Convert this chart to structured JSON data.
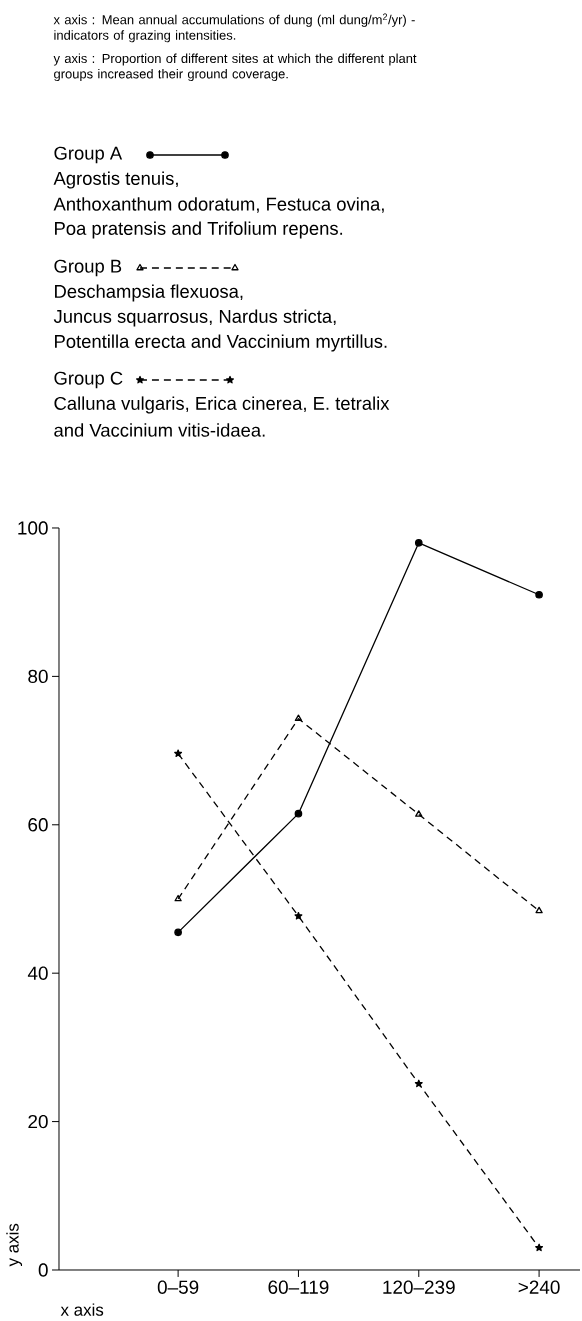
{
  "chart_data": {
    "type": "line",
    "xlabel": "x axis",
    "ylabel": "y axis",
    "annotations": [
      "x axis : Mean annual accumulations of dung (ml dung/m$^{2}$/yr) - indicators of grazing intensities.",
      "y axis : Proportion of different sites at which the different plant groups increased their ground coverage.",
      "Agrostis tenuis,",
      "Anthoxanthum odoratum, Festuca ovina,",
      "Poa pratensis and Trifolium repens.",
      "Deschampsia flexuosa,",
      "Juncus squarrosus, Nardus stricta,",
      "Potentilla erecta and Vaccinium myrtillus.",
      "Calluna vulgaris, Erica cinerea, E. tetralix",
      "and Vaccinium vitis-idaea."
    ],
    "categories": [
      "0–59",
      "60–119",
      "120–239",
      ">240"
    ],
    "ylim": [
      0,
      100
    ],
    "yticks": [
      0,
      20,
      40,
      60,
      80,
      100
    ],
    "legend": "top",
    "series": [
      {
        "name": "Group A",
        "color": "#000000",
        "marker": "circle",
        "line_style": "solid",
        "values": [
          45.5,
          61.5,
          98,
          91
        ]
      },
      {
        "name": "Group B",
        "color": "#000000",
        "marker": "triangle",
        "line_style": "dashed",
        "values": [
          50,
          74.3,
          61.4,
          48.4
        ]
      },
      {
        "name": "Group C",
        "color": "#000000",
        "marker": "star",
        "line_style": "dashed",
        "values": [
          69.6,
          47.7,
          25.1,
          3
        ]
      }
    ]
  }
}
